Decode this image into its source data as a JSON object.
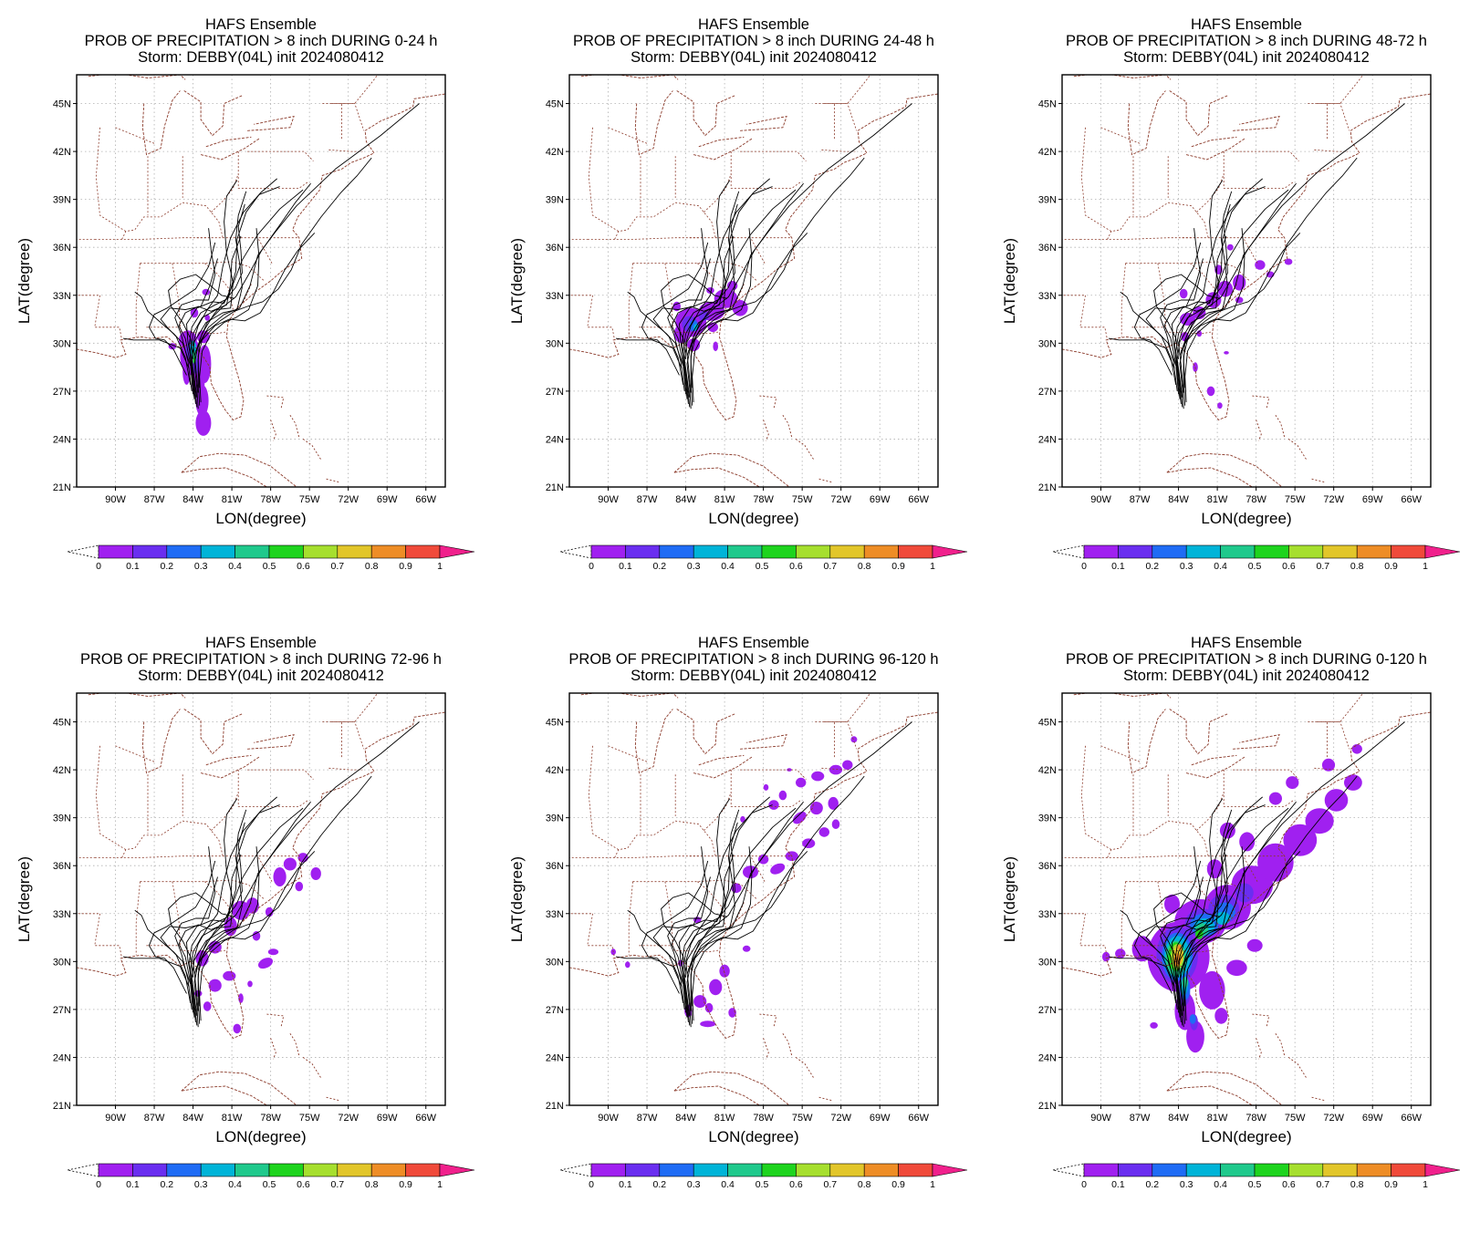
{
  "figure": {
    "suptitle_shared": "HAFS Ensemble",
    "storm_line": "Storm: DEBBY(04L) init 2024080412",
    "x_axis_label": "LON(degree)",
    "y_axis_label": "LAT(degree)",
    "lat_ticks": [
      "21N",
      "24N",
      "27N",
      "30N",
      "33N",
      "36N",
      "39N",
      "42N",
      "45N"
    ],
    "lon_ticks": [
      "90W",
      "87W",
      "84W",
      "81W",
      "78W",
      "75W",
      "72W",
      "69W",
      "66W"
    ],
    "colorbar": {
      "labels": [
        "0",
        "0.1",
        "0.2",
        "0.3",
        "0.4",
        "0.5",
        "0.6",
        "0.7",
        "0.8",
        "0.9",
        "1"
      ],
      "colors": [
        "#a020f0",
        "#6a2ef0",
        "#1f6cf5",
        "#00b4d8",
        "#1fc98c",
        "#1ed41e",
        "#a6df2e",
        "#e2c62a",
        "#ee8d26",
        "#f04a3a",
        "#f0208c"
      ]
    },
    "colors": {
      "track": "#000000",
      "borders": "#8b3a2a",
      "grid": "#b0b0b0"
    }
  },
  "panels": [
    {
      "title_main": "HAFS Ensemble",
      "title_prob": "PROB OF PRECIPITATION > 8 inch DURING  0-24 h",
      "title_storm": "Storm: DEBBY(04L) init 2024080412"
    },
    {
      "title_main": "HAFS Ensemble",
      "title_prob": "PROB OF PRECIPITATION > 8 inch DURING 24-48 h",
      "title_storm": "Storm: DEBBY(04L) init 2024080412"
    },
    {
      "title_main": "HAFS Ensemble",
      "title_prob": "PROB OF PRECIPITATION > 8 inch DURING 48-72 h",
      "title_storm": "Storm: DEBBY(04L) init 2024080412"
    },
    {
      "title_main": "HAFS Ensemble",
      "title_prob": "PROB OF PRECIPITATION > 8 inch DURING 72-96 h",
      "title_storm": "Storm: DEBBY(04L) init 2024080412"
    },
    {
      "title_main": "HAFS Ensemble",
      "title_prob": "PROB OF PRECIPITATION > 8 inch DURING 96-120 h",
      "title_storm": "Storm: DEBBY(04L) init 2024080412"
    },
    {
      "title_main": "HAFS Ensemble",
      "title_prob": "PROB OF PRECIPITATION > 8 inch DURING 0-120 h",
      "title_storm": "Storm: DEBBY(04L) init 2024080412"
    }
  ]
}
